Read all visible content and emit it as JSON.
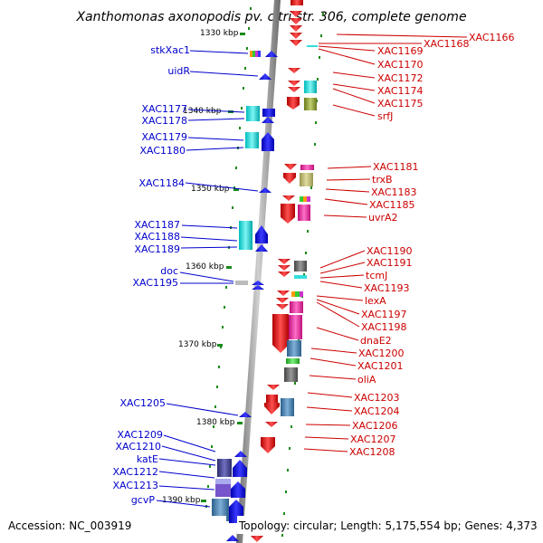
{
  "title": "Xanthomonas axonopodis pv. citri str. 306, complete genome",
  "footer": {
    "accession": "Accession: NC_003919",
    "topology": "Topology: circular; Length: 5,175,554 bp; Genes: 4,373"
  },
  "colors": {
    "left_labels": "#0000cc",
    "right_labels": "#cc0000",
    "backbone": "#888888",
    "tick": "#1a8a1a"
  },
  "scale_labels": [
    "1330 kbp",
    "1340 kbp",
    "1350 kbp",
    "1360 kbp",
    "1370 kbp",
    "1380 kbp",
    "1390 kbp"
  ],
  "left_genes": [
    "stkXac1",
    "uidR",
    "XAC1177",
    "XAC1178",
    "XAC1179",
    "XAC1180",
    "XAC1184",
    "XAC1187",
    "XAC1188",
    "XAC1189",
    "doc",
    "XAC1195",
    "XAC1205",
    "XAC1209",
    "XAC1210",
    "katE",
    "XAC1212",
    "XAC1213",
    "gcvP"
  ],
  "right_genes": [
    "XAC1166",
    "XAC1168",
    "XAC1169",
    "XAC1170",
    "XAC1172",
    "XAC1174",
    "XAC1175",
    "srfJ",
    "XAC1181",
    "trxB",
    "XAC1183",
    "XAC1185",
    "uvrA2",
    "XAC1190",
    "XAC1191",
    "tcmJ",
    "XAC1193",
    "lexA",
    "XAC1197",
    "XAC1198",
    "dnaE2",
    "XAC1200",
    "XAC1201",
    "oliA",
    "XAC1203",
    "XAC1204",
    "XAC1206",
    "XAC1207",
    "XAC1208"
  ]
}
